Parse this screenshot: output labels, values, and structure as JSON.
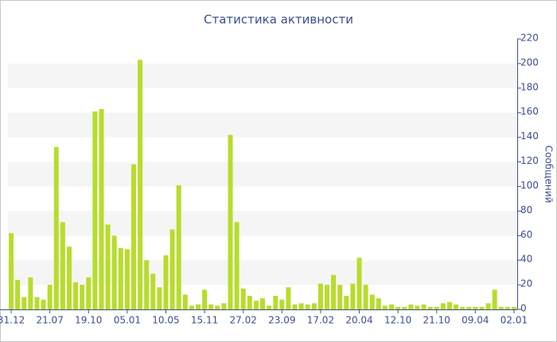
{
  "chart_data": {
    "type": "bar",
    "title": "Статистика активности",
    "y_label": "Сообщений",
    "categories": [
      "31.12",
      null,
      null,
      null,
      null,
      null,
      "21.07",
      null,
      null,
      null,
      null,
      null,
      "19.10",
      null,
      null,
      null,
      null,
      null,
      "05.01",
      null,
      null,
      null,
      null,
      null,
      "10.05",
      null,
      null,
      null,
      null,
      null,
      "15.11",
      null,
      null,
      null,
      null,
      null,
      "27.02",
      null,
      null,
      null,
      null,
      null,
      "23.09",
      null,
      null,
      null,
      null,
      null,
      "17.02",
      null,
      null,
      null,
      null,
      null,
      "20.04",
      null,
      null,
      null,
      null,
      null,
      "12.10",
      null,
      null,
      null,
      null,
      null,
      "21.10",
      null,
      null,
      null,
      null,
      null,
      "09.04",
      null,
      null,
      null,
      null,
      null,
      "02.01"
    ],
    "values": [
      62,
      24,
      10,
      26,
      10,
      8,
      20,
      132,
      71,
      51,
      22,
      20,
      26,
      161,
      163,
      69,
      60,
      50,
      49,
      118,
      203,
      40,
      29,
      18,
      44,
      65,
      101,
      12,
      3,
      4,
      16,
      4,
      3,
      5,
      142,
      71,
      17,
      11,
      7,
      9,
      3,
      11,
      8,
      18,
      4,
      5,
      4,
      5,
      21,
      20,
      28,
      20,
      11,
      21,
      42,
      20,
      12,
      9,
      3,
      4,
      2,
      2,
      4,
      3,
      4,
      2,
      2,
      5,
      6,
      4,
      2,
      2,
      2,
      2,
      5,
      16,
      2,
      2,
      2
    ],
    "color": "#b8dc2c",
    "ylim": [
      0,
      220
    ],
    "yticks": [
      0,
      20,
      40,
      60,
      80,
      100,
      120,
      140,
      160,
      180,
      200,
      220
    ],
    "grid": true
  }
}
